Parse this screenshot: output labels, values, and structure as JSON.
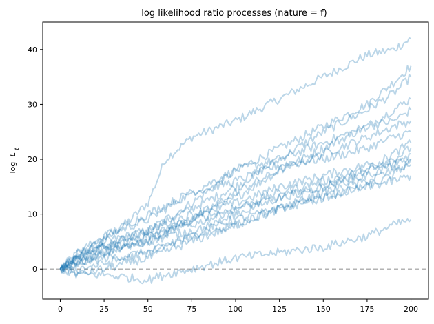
{
  "chart_data": {
    "type": "line",
    "title": "log likelihood ratio processes (nature = f)",
    "xlabel": "",
    "ylabel": "log L_t",
    "ylabel_main": "log",
    "ylabel_var": "L",
    "ylabel_sub": "t",
    "xlim": [
      -10,
      210
    ],
    "ylim": [
      -5.5,
      45
    ],
    "xticks": [
      0,
      25,
      50,
      75,
      100,
      125,
      150,
      175,
      200
    ],
    "yticks": [
      0,
      10,
      20,
      30,
      40
    ],
    "grid": false,
    "reference_line": {
      "y": 0,
      "style": "dashed",
      "color": "#b3b3b3"
    },
    "line_color": "#1f77b4",
    "line_alpha": 0.3,
    "series": [
      {
        "points": [
          [
            0,
            0
          ],
          [
            10,
            3
          ],
          [
            25,
            5
          ],
          [
            40,
            9
          ],
          [
            50,
            12
          ],
          [
            60,
            20
          ],
          [
            75,
            24
          ],
          [
            100,
            27
          ],
          [
            125,
            31
          ],
          [
            150,
            35
          ],
          [
            175,
            39
          ],
          [
            190,
            40
          ],
          [
            200,
            42
          ]
        ]
      },
      {
        "points": [
          [
            0,
            0
          ],
          [
            10,
            2
          ],
          [
            25,
            5
          ],
          [
            50,
            7
          ],
          [
            75,
            12
          ],
          [
            100,
            18
          ],
          [
            125,
            22
          ],
          [
            150,
            26
          ],
          [
            175,
            30
          ],
          [
            190,
            34
          ],
          [
            200,
            37
          ]
        ]
      },
      {
        "points": [
          [
            0,
            0
          ],
          [
            10,
            2
          ],
          [
            25,
            4
          ],
          [
            50,
            7
          ],
          [
            75,
            11
          ],
          [
            100,
            15
          ],
          [
            125,
            20
          ],
          [
            150,
            25
          ],
          [
            175,
            29
          ],
          [
            190,
            32
          ],
          [
            200,
            35
          ]
        ]
      },
      {
        "points": [
          [
            0,
            0
          ],
          [
            10,
            2
          ],
          [
            25,
            4
          ],
          [
            50,
            5
          ],
          [
            75,
            9
          ],
          [
            100,
            13
          ],
          [
            125,
            18
          ],
          [
            150,
            22
          ],
          [
            175,
            26
          ],
          [
            190,
            29
          ],
          [
            200,
            31
          ]
        ]
      },
      {
        "points": [
          [
            0,
            0
          ],
          [
            10,
            3
          ],
          [
            25,
            6
          ],
          [
            50,
            9
          ],
          [
            75,
            14
          ],
          [
            100,
            18
          ],
          [
            125,
            20
          ],
          [
            150,
            23
          ],
          [
            175,
            26
          ],
          [
            190,
            27
          ],
          [
            200,
            29
          ]
        ]
      },
      {
        "points": [
          [
            0,
            0
          ],
          [
            10,
            1
          ],
          [
            25,
            3
          ],
          [
            50,
            5
          ],
          [
            75,
            9
          ],
          [
            100,
            14
          ],
          [
            125,
            18
          ],
          [
            150,
            21
          ],
          [
            175,
            24
          ],
          [
            190,
            26
          ],
          [
            200,
            27
          ]
        ]
      },
      {
        "points": [
          [
            0,
            0
          ],
          [
            10,
            2
          ],
          [
            25,
            6
          ],
          [
            50,
            10
          ],
          [
            75,
            14
          ],
          [
            100,
            16
          ],
          [
            125,
            19
          ],
          [
            150,
            20
          ],
          [
            175,
            22
          ],
          [
            190,
            24
          ],
          [
            200,
            25
          ]
        ]
      },
      {
        "points": [
          [
            0,
            0
          ],
          [
            10,
            1
          ],
          [
            25,
            2
          ],
          [
            50,
            3
          ],
          [
            75,
            6
          ],
          [
            100,
            10
          ],
          [
            125,
            13
          ],
          [
            150,
            15
          ],
          [
            175,
            18
          ],
          [
            190,
            21
          ],
          [
            200,
            23
          ]
        ]
      },
      {
        "points": [
          [
            0,
            0
          ],
          [
            10,
            2
          ],
          [
            25,
            4
          ],
          [
            50,
            7
          ],
          [
            75,
            10
          ],
          [
            100,
            12
          ],
          [
            125,
            15
          ],
          [
            150,
            17
          ],
          [
            175,
            19
          ],
          [
            190,
            20
          ],
          [
            200,
            22
          ]
        ]
      },
      {
        "points": [
          [
            0,
            0
          ],
          [
            10,
            2
          ],
          [
            25,
            4
          ],
          [
            50,
            6
          ],
          [
            75,
            9
          ],
          [
            100,
            11
          ],
          [
            125,
            14
          ],
          [
            150,
            16
          ],
          [
            175,
            18
          ],
          [
            190,
            19
          ],
          [
            200,
            21
          ]
        ]
      },
      {
        "points": [
          [
            0,
            0
          ],
          [
            10,
            1
          ],
          [
            25,
            3
          ],
          [
            50,
            6
          ],
          [
            75,
            8
          ],
          [
            100,
            11
          ],
          [
            125,
            13
          ],
          [
            150,
            15
          ],
          [
            175,
            17
          ],
          [
            190,
            19
          ],
          [
            200,
            20
          ]
        ]
      },
      {
        "points": [
          [
            0,
            0
          ],
          [
            10,
            1
          ],
          [
            25,
            3
          ],
          [
            50,
            5
          ],
          [
            75,
            7
          ],
          [
            100,
            9
          ],
          [
            125,
            11
          ],
          [
            150,
            14
          ],
          [
            175,
            16
          ],
          [
            190,
            18
          ],
          [
            200,
            19
          ]
        ]
      },
      {
        "points": [
          [
            0,
            0
          ],
          [
            10,
            -1
          ],
          [
            25,
            0
          ],
          [
            50,
            2
          ],
          [
            75,
            5
          ],
          [
            100,
            8
          ],
          [
            125,
            11
          ],
          [
            150,
            13
          ],
          [
            175,
            15
          ],
          [
            190,
            17
          ],
          [
            200,
            20
          ]
        ]
      },
      {
        "points": [
          [
            0,
            0
          ],
          [
            10,
            0
          ],
          [
            25,
            1
          ],
          [
            50,
            3
          ],
          [
            75,
            6
          ],
          [
            100,
            8
          ],
          [
            125,
            11
          ],
          [
            150,
            13
          ],
          [
            175,
            15
          ],
          [
            190,
            16
          ],
          [
            200,
            17
          ]
        ]
      },
      {
        "points": [
          [
            0,
            0
          ],
          [
            10,
            -1
          ],
          [
            25,
            -1
          ],
          [
            50,
            -2
          ],
          [
            60,
            -1
          ],
          [
            75,
            0
          ],
          [
            100,
            2
          ],
          [
            125,
            3
          ],
          [
            150,
            4
          ],
          [
            175,
            6
          ],
          [
            190,
            8
          ],
          [
            200,
            9
          ]
        ]
      }
    ]
  }
}
